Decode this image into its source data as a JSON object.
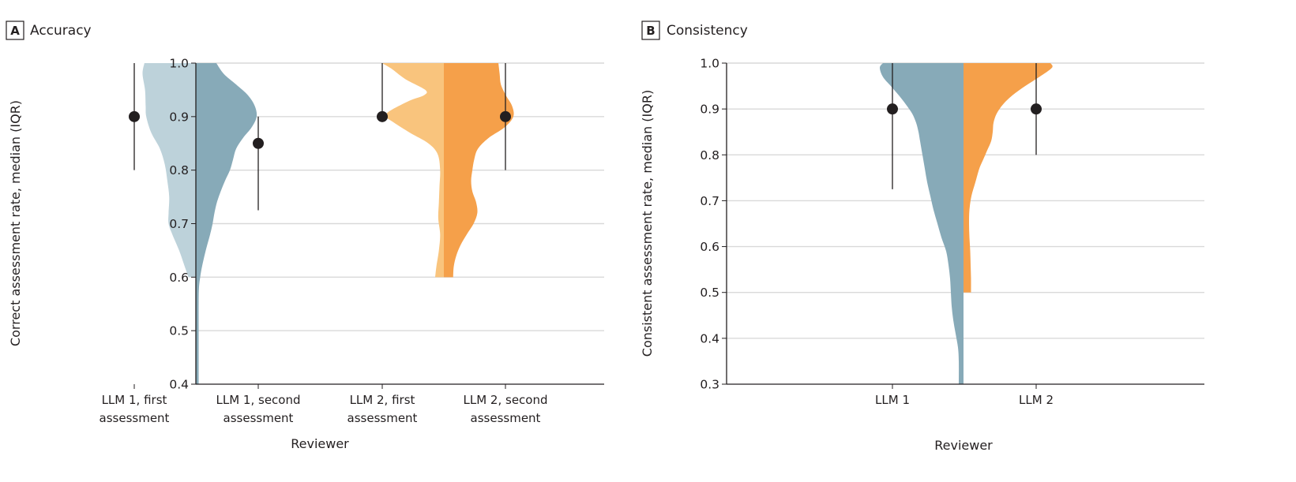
{
  "chart_data": [
    {
      "type": "violin",
      "panel_letter": "A",
      "title": "Accuracy",
      "xlabel": "Reviewer",
      "ylabel": "Correct assessment rate, median (IQR)",
      "ylim": [
        0.4,
        1.0
      ],
      "yticks": [
        "1.0",
        "0.9",
        "0.8",
        "0.7",
        "0.6",
        "0.5",
        "0.4"
      ],
      "ytick_values": [
        1.0,
        0.9,
        0.8,
        0.7,
        0.6,
        0.5,
        0.4
      ],
      "grid": true,
      "categories": [
        {
          "label_line1": "LLM 1, first",
          "label_line2": "assessment"
        },
        {
          "label_line1": "LLM 1, second",
          "label_line2": "assessment"
        },
        {
          "label_line1": "LLM 2, first",
          "label_line2": "assessment"
        },
        {
          "label_line1": "LLM 2, second",
          "label_line2": "assessment"
        }
      ],
      "series": [
        {
          "name": "LLM 1, first assessment",
          "color": "#bdd2da",
          "side": "left",
          "pair": 0,
          "median": 0.9,
          "iqr": [
            0.8,
            1.0
          ],
          "density": [
            [
              1.0,
              0.83
            ],
            [
              0.98,
              0.86
            ],
            [
              0.95,
              0.82
            ],
            [
              0.92,
              0.81
            ],
            [
              0.9,
              0.8
            ],
            [
              0.87,
              0.72
            ],
            [
              0.84,
              0.58
            ],
            [
              0.81,
              0.5
            ],
            [
              0.78,
              0.46
            ],
            [
              0.75,
              0.43
            ],
            [
              0.72,
              0.44
            ],
            [
              0.7,
              0.44
            ],
            [
              0.68,
              0.38
            ],
            [
              0.65,
              0.27
            ],
            [
              0.62,
              0.18
            ],
            [
              0.6,
              0.12
            ]
          ]
        },
        {
          "name": "LLM 1, second assessment",
          "color": "#87aab8",
          "side": "right",
          "pair": 0,
          "median": 0.85,
          "iqr": [
            0.725,
            0.9
          ],
          "density": [
            [
              1.0,
              0.33
            ],
            [
              0.98,
              0.45
            ],
            [
              0.96,
              0.65
            ],
            [
              0.94,
              0.84
            ],
            [
              0.92,
              0.95
            ],
            [
              0.9,
              0.98
            ],
            [
              0.88,
              0.9
            ],
            [
              0.86,
              0.76
            ],
            [
              0.84,
              0.65
            ],
            [
              0.82,
              0.6
            ],
            [
              0.8,
              0.55
            ],
            [
              0.78,
              0.47
            ],
            [
              0.76,
              0.4
            ],
            [
              0.74,
              0.34
            ],
            [
              0.72,
              0.3
            ],
            [
              0.7,
              0.27
            ],
            [
              0.68,
              0.23
            ],
            [
              0.65,
              0.16
            ],
            [
              0.62,
              0.1
            ],
            [
              0.6,
              0.07
            ],
            [
              0.58,
              0.05
            ],
            [
              0.55,
              0.045
            ],
            [
              0.5,
              0.045
            ],
            [
              0.45,
              0.045
            ],
            [
              0.4,
              0.045
            ]
          ]
        },
        {
          "name": "LLM 2, first assessment",
          "color": "#f9c47d",
          "side": "left",
          "pair": 1,
          "median": 0.9,
          "iqr": [
            0.9,
            1.0
          ],
          "density": [
            [
              1.0,
              1.0
            ],
            [
              0.99,
              0.85
            ],
            [
              0.97,
              0.62
            ],
            [
              0.95,
              0.3
            ],
            [
              0.94,
              0.32
            ],
            [
              0.93,
              0.55
            ],
            [
              0.91,
              0.88
            ],
            [
              0.9,
              0.93
            ],
            [
              0.89,
              0.82
            ],
            [
              0.87,
              0.55
            ],
            [
              0.85,
              0.25
            ],
            [
              0.83,
              0.1
            ],
            [
              0.8,
              0.06
            ],
            [
              0.77,
              0.07
            ],
            [
              0.74,
              0.08
            ],
            [
              0.71,
              0.09
            ],
            [
              0.68,
              0.06
            ],
            [
              0.65,
              0.08
            ],
            [
              0.62,
              0.12
            ],
            [
              0.6,
              0.14
            ]
          ]
        },
        {
          "name": "LLM 2, second assessment",
          "color": "#f5a04a",
          "side": "right",
          "pair": 1,
          "median": 0.9,
          "iqr": [
            0.8,
            1.0
          ],
          "density": [
            [
              1.0,
              0.88
            ],
            [
              0.98,
              0.9
            ],
            [
              0.96,
              0.92
            ],
            [
              0.94,
              1.0
            ],
            [
              0.92,
              1.1
            ],
            [
              0.9,
              1.12
            ],
            [
              0.88,
              0.98
            ],
            [
              0.86,
              0.72
            ],
            [
              0.84,
              0.55
            ],
            [
              0.82,
              0.49
            ],
            [
              0.8,
              0.46
            ],
            [
              0.78,
              0.44
            ],
            [
              0.76,
              0.46
            ],
            [
              0.74,
              0.52
            ],
            [
              0.72,
              0.54
            ],
            [
              0.7,
              0.48
            ],
            [
              0.68,
              0.37
            ],
            [
              0.66,
              0.27
            ],
            [
              0.64,
              0.2
            ],
            [
              0.62,
              0.16
            ],
            [
              0.6,
              0.15
            ]
          ]
        }
      ]
    },
    {
      "type": "violin",
      "panel_letter": "B",
      "title": "Consistency",
      "xlabel": "Reviewer",
      "ylabel": "Consistent assessment rate, median (IQR)",
      "ylim": [
        0.3,
        1.0
      ],
      "yticks": [
        "1.0",
        "0.9",
        "0.8",
        "0.7",
        "0.6",
        "0.5",
        "0.4",
        "0.3"
      ],
      "ytick_values": [
        1.0,
        0.9,
        0.8,
        0.7,
        0.6,
        0.5,
        0.4,
        0.3
      ],
      "grid": true,
      "categories": [
        {
          "label_line1": "LLM 1",
          "label_line2": ""
        },
        {
          "label_line1": "LLM 2",
          "label_line2": ""
        }
      ],
      "series": [
        {
          "name": "LLM 1",
          "color": "#87aab8",
          "side": "left",
          "pair": 0,
          "median": 0.9,
          "iqr": [
            0.725,
            1.0
          ],
          "density": [
            [
              1.0,
              1.02
            ],
            [
              0.99,
              1.06
            ],
            [
              0.97,
              1.02
            ],
            [
              0.95,
              0.92
            ],
            [
              0.93,
              0.82
            ],
            [
              0.91,
              0.73
            ],
            [
              0.89,
              0.65
            ],
            [
              0.87,
              0.6
            ],
            [
              0.85,
              0.57
            ],
            [
              0.83,
              0.55
            ],
            [
              0.8,
              0.52
            ],
            [
              0.77,
              0.49
            ],
            [
              0.74,
              0.46
            ],
            [
              0.71,
              0.42
            ],
            [
              0.68,
              0.38
            ],
            [
              0.65,
              0.33
            ],
            [
              0.62,
              0.28
            ],
            [
              0.59,
              0.22
            ],
            [
              0.56,
              0.19
            ],
            [
              0.53,
              0.17
            ],
            [
              0.5,
              0.16
            ],
            [
              0.47,
              0.15
            ],
            [
              0.44,
              0.13
            ],
            [
              0.41,
              0.1
            ],
            [
              0.38,
              0.07
            ],
            [
              0.35,
              0.06
            ],
            [
              0.3,
              0.06
            ]
          ]
        },
        {
          "name": "LLM 2",
          "color": "#f5a04a",
          "side": "right",
          "pair": 0,
          "median": 0.9,
          "iqr": [
            0.8,
            1.0
          ],
          "density": [
            [
              1.0,
              1.1
            ],
            [
              0.99,
              1.12
            ],
            [
              0.97,
              0.96
            ],
            [
              0.95,
              0.78
            ],
            [
              0.93,
              0.62
            ],
            [
              0.91,
              0.5
            ],
            [
              0.89,
              0.42
            ],
            [
              0.87,
              0.38
            ],
            [
              0.85,
              0.37
            ],
            [
              0.83,
              0.35
            ],
            [
              0.81,
              0.3
            ],
            [
              0.79,
              0.25
            ],
            [
              0.77,
              0.2
            ],
            [
              0.74,
              0.15
            ],
            [
              0.71,
              0.1
            ],
            [
              0.68,
              0.075
            ],
            [
              0.65,
              0.07
            ],
            [
              0.62,
              0.075
            ],
            [
              0.59,
              0.085
            ],
            [
              0.56,
              0.09
            ],
            [
              0.53,
              0.095
            ],
            [
              0.5,
              0.095
            ]
          ]
        }
      ]
    }
  ]
}
